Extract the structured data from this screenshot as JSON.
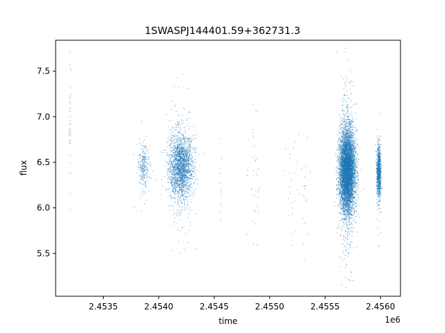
{
  "chart_data": {
    "type": "scatter",
    "title": "1SWASPJ144401.59+362731.3",
    "xlabel": "time",
    "ylabel": "flux",
    "x_offset_label": "1e6",
    "xlim": [
      2453070,
      2456180
    ],
    "ylim": [
      5.03,
      7.84
    ],
    "x_ticks": [
      {
        "value": 2453500,
        "label": "2.4535"
      },
      {
        "value": 2454000,
        "label": "2.4540"
      },
      {
        "value": 2454500,
        "label": "2.4545"
      },
      {
        "value": 2455000,
        "label": "2.4550"
      },
      {
        "value": 2455500,
        "label": "2.4555"
      },
      {
        "value": 2456000,
        "label": "2.4560"
      }
    ],
    "y_ticks": [
      {
        "value": 5.5,
        "label": "5.5"
      },
      {
        "value": 6.0,
        "label": "6.0"
      },
      {
        "value": 6.5,
        "label": "6.5"
      },
      {
        "value": 7.0,
        "label": "7.0"
      },
      {
        "value": 7.5,
        "label": "7.5"
      }
    ],
    "grid": false,
    "marker_color": "#1f77b4",
    "clusters": [
      {
        "x_center": 2453200,
        "x_spread": 6,
        "y_center": 7.0,
        "y_spread": 0.35,
        "count": 40
      },
      {
        "x_center": 2453862,
        "x_spread": 25,
        "y_center": 6.45,
        "y_spread": 0.12,
        "count": 260
      },
      {
        "x_center": 2454200,
        "x_spread": 55,
        "y_center": 6.45,
        "y_spread": 0.18,
        "count": 2200
      },
      {
        "x_center": 2454560,
        "x_spread": 3,
        "y_center": 6.2,
        "y_spread": 0.25,
        "count": 12
      },
      {
        "x_center": 2454870,
        "x_spread": 30,
        "y_center": 6.3,
        "y_spread": 0.3,
        "count": 40
      },
      {
        "x_center": 2455200,
        "x_spread": 30,
        "y_center": 6.2,
        "y_spread": 0.3,
        "count": 25
      },
      {
        "x_center": 2455320,
        "x_spread": 20,
        "y_center": 6.1,
        "y_spread": 0.4,
        "count": 20
      },
      {
        "x_center": 2455700,
        "x_spread": 35,
        "y_center": 6.4,
        "y_spread": 0.22,
        "count": 6500
      },
      {
        "x_center": 2455985,
        "x_spread": 10,
        "y_center": 6.4,
        "y_spread": 0.14,
        "count": 900
      }
    ]
  }
}
